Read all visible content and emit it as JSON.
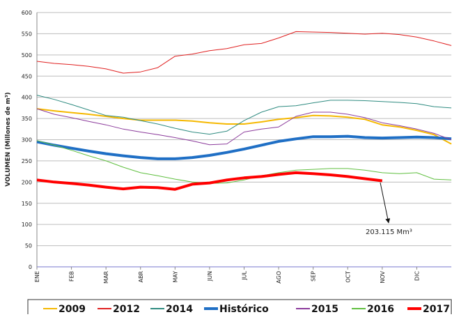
{
  "chart_data": {
    "type": "line",
    "y_label": "VOLUMEN (Millones de m³)",
    "categories": [
      "ENE",
      null,
      "FEB",
      null,
      "MAR",
      null,
      "ABR",
      null,
      "MAY",
      null,
      "JUN",
      null,
      "JUL",
      null,
      "AGO",
      null,
      "SEP",
      null,
      "OCT",
      null,
      "NOV",
      null,
      "DIC",
      null,
      null
    ],
    "ylim": [
      0,
      600
    ],
    "yticks": [
      0,
      50,
      100,
      150,
      200,
      250,
      300,
      350,
      400,
      450,
      500,
      550,
      600
    ],
    "grid": true,
    "legend": "bottom",
    "series": [
      {
        "name": "2009",
        "color": "#f5b800",
        "width": 2,
        "values": [
          373,
          368,
          364,
          360,
          355,
          350,
          346,
          346,
          346,
          344,
          340,
          337,
          337,
          342,
          348,
          352,
          357,
          356,
          353,
          348,
          335,
          330,
          322,
          312,
          290
        ]
      },
      {
        "name": "2012",
        "color": "#e02020",
        "width": 1,
        "values": [
          485,
          480,
          477,
          473,
          467,
          457,
          460,
          470,
          497,
          502,
          510,
          515,
          524,
          527,
          540,
          555,
          554,
          553,
          551,
          549,
          551,
          548,
          542,
          533,
          522
        ]
      },
      {
        "name": "2014",
        "color": "#2e8b80",
        "width": 1,
        "values": [
          405,
          395,
          383,
          370,
          357,
          353,
          345,
          337,
          327,
          318,
          313,
          320,
          345,
          365,
          378,
          380,
          387,
          393,
          393,
          392,
          390,
          388,
          385,
          378,
          375
        ]
      },
      {
        "name": "Histórico",
        "color": "#1f6fc5",
        "width": 4,
        "values": [
          295,
          287,
          280,
          273,
          267,
          262,
          258,
          255,
          255,
          258,
          263,
          270,
          278,
          287,
          296,
          302,
          307,
          307,
          308,
          305,
          304,
          305,
          306,
          305,
          302
        ]
      },
      {
        "name": "2015",
        "color": "#8b3a9b",
        "width": 1,
        "values": [
          373,
          360,
          352,
          343,
          335,
          325,
          318,
          312,
          305,
          297,
          288,
          290,
          318,
          325,
          330,
          355,
          365,
          365,
          360,
          352,
          340,
          333,
          325,
          315,
          300
        ]
      },
      {
        "name": "2016",
        "color": "#5fbf3f",
        "width": 1,
        "values": [
          298,
          287,
          275,
          262,
          250,
          235,
          222,
          215,
          207,
          200,
          197,
          198,
          205,
          215,
          222,
          228,
          230,
          232,
          232,
          228,
          222,
          220,
          222,
          207,
          205
        ]
      },
      {
        "name": "2017",
        "color": "#ff0000",
        "width": 4,
        "values": [
          205,
          200,
          197,
          193,
          188,
          184,
          188,
          187,
          183,
          195,
          198,
          205,
          210,
          213,
          218,
          222,
          220,
          217,
          213,
          208,
          203,
          null,
          null,
          null,
          null
        ]
      }
    ],
    "annotations": [
      {
        "text": "203.115 Mm³"
      }
    ]
  }
}
